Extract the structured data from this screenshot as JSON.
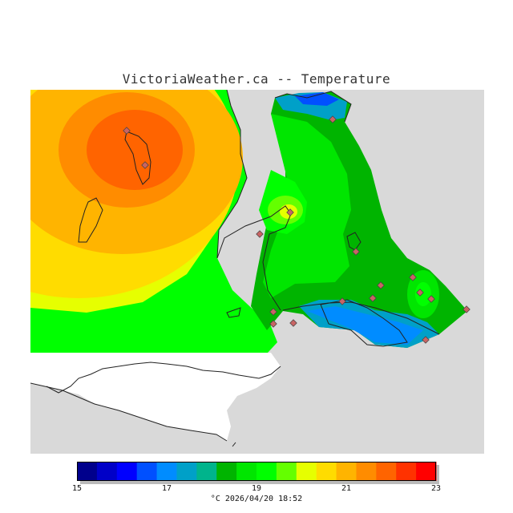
{
  "title": "VictoriaWeather.ca -- Temperature",
  "legend": {
    "colors": [
      "#00008c",
      "#0000c8",
      "#0000ff",
      "#0050ff",
      "#008cff",
      "#00a0c8",
      "#00b48c",
      "#00b400",
      "#00e600",
      "#00ff00",
      "#64ff00",
      "#e6ff00",
      "#ffdc00",
      "#ffb400",
      "#ff8c00",
      "#ff6400",
      "#ff3200",
      "#ff0000"
    ],
    "min": 15,
    "max": 23,
    "tick_values": [
      "15",
      "17",
      "19",
      "21",
      "23"
    ]
  },
  "caption": {
    "unit": "°C",
    "timestamp": "2026/04/20 18:52"
  },
  "map_colors": {
    "land_gray": "#d9d9d9",
    "white_area": "#ffffff",
    "station_marker": "#c86464"
  }
}
